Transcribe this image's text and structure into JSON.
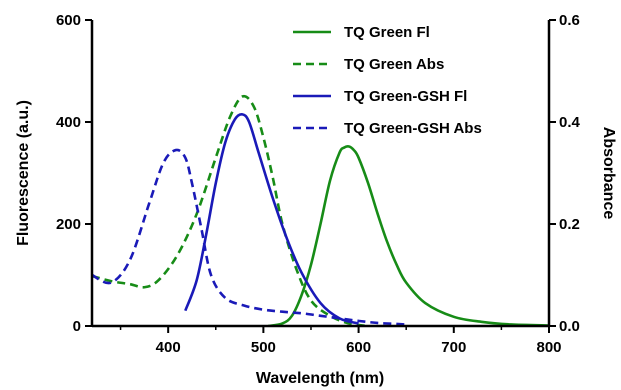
{
  "chart_data": {
    "type": "line",
    "xlabel": "Wavelength (nm)",
    "ylabel": "Fluorescence (a.u.)",
    "y2label": "Absorbance",
    "xlim": [
      320,
      800
    ],
    "ylim": [
      0,
      600
    ],
    "y2lim": [
      0,
      0.6
    ],
    "x_ticks": [
      400,
      500,
      600,
      700,
      800
    ],
    "x_tick_labels": [
      "400",
      "500",
      "600",
      "700",
      "800"
    ],
    "y_ticks": [
      0,
      200,
      400,
      600
    ],
    "y_tick_labels": [
      "0",
      "200",
      "400",
      "600"
    ],
    "y2_ticks": [
      0,
      0.2,
      0.4,
      0.6
    ],
    "y2_tick_labels": [
      "0.0",
      "0.2",
      "0.4",
      "0.6"
    ],
    "legend_position": "top-right",
    "grid": false,
    "series": [
      {
        "name": "TQ Green Fl",
        "axis": "left",
        "color": "#178c17",
        "dash": "solid",
        "x": [
          505,
          520,
          530,
          540,
          550,
          560,
          570,
          580,
          585,
          590,
          595,
          600,
          610,
          620,
          630,
          640,
          650,
          670,
          700,
          730,
          760,
          800
        ],
        "y": [
          0,
          5,
          20,
          60,
          120,
          200,
          285,
          340,
          350,
          352,
          345,
          330,
          280,
          220,
          165,
          120,
          85,
          45,
          18,
          8,
          3,
          1
        ]
      },
      {
        "name": "TQ Green Abs",
        "axis": "right",
        "color": "#178c17",
        "dash": "dashed",
        "x": [
          320,
          340,
          360,
          375,
          390,
          410,
          430,
          450,
          465,
          478,
          490,
          500,
          510,
          520,
          535,
          550,
          570,
          590,
          610
        ],
        "y": [
          0.098,
          0.088,
          0.082,
          0.076,
          0.09,
          0.14,
          0.22,
          0.33,
          0.41,
          0.45,
          0.43,
          0.37,
          0.29,
          0.2,
          0.11,
          0.05,
          0.02,
          0.005,
          0
        ]
      },
      {
        "name": "TQ Green-GSH Fl",
        "axis": "left",
        "color": "#1a1ab8",
        "dash": "solid",
        "x": [
          418,
          430,
          440,
          450,
          460,
          470,
          478,
          485,
          495,
          510,
          525,
          540,
          560,
          580,
          600
        ],
        "y": [
          30,
          90,
          180,
          280,
          360,
          405,
          415,
          400,
          340,
          250,
          170,
          105,
          45,
          15,
          5
        ]
      },
      {
        "name": "TQ Green-GSH Abs",
        "axis": "right",
        "color": "#1a1ab8",
        "dash": "dashed",
        "x": [
          320,
          340,
          360,
          380,
          395,
          408,
          418,
          425,
          435,
          445,
          460,
          480,
          500,
          520,
          540,
          560,
          580,
          600,
          620,
          640,
          650
        ],
        "y": [
          0.1,
          0.085,
          0.13,
          0.24,
          0.32,
          0.345,
          0.33,
          0.28,
          0.19,
          0.1,
          0.055,
          0.04,
          0.032,
          0.028,
          0.025,
          0.02,
          0.015,
          0.01,
          0.006,
          0.004,
          0.003
        ]
      }
    ]
  }
}
